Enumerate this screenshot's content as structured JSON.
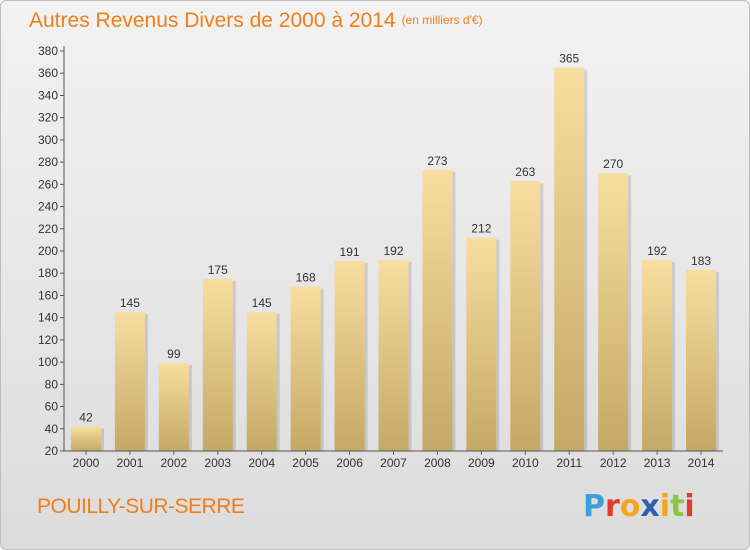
{
  "header": {
    "title": "Autres Revenus Divers de 2000 à 2014",
    "unit": "(en milliers d'€)"
  },
  "footer": {
    "commune": "POUILLY-SUR-SERRE",
    "logo_letters": [
      "P",
      "r",
      "o",
      "x",
      "i",
      "t",
      "i"
    ],
    "logo_colors": [
      "#3aa0d8",
      "#e23a2d",
      "#f5a51d",
      "#2c5fae",
      "#f5a51d",
      "#8cc63f",
      "#e23a2d"
    ]
  },
  "chart_data": {
    "type": "bar",
    "title": "Autres Revenus Divers de 2000 à 2014",
    "unit": "(en milliers d'€)",
    "categories": [
      "2000",
      "2001",
      "2002",
      "2003",
      "2004",
      "2005",
      "2006",
      "2007",
      "2008",
      "2009",
      "2010",
      "2011",
      "2012",
      "2013",
      "2014"
    ],
    "values": [
      42,
      145,
      99,
      175,
      145,
      168,
      191,
      192,
      273,
      212,
      263,
      365,
      270,
      192,
      183
    ],
    "ylim": [
      20,
      380
    ],
    "yticks": [
      20,
      40,
      60,
      80,
      100,
      120,
      140,
      160,
      180,
      200,
      220,
      240,
      260,
      280,
      300,
      320,
      340,
      360,
      380
    ],
    "grid": false,
    "legend": "none",
    "bar_color_top": "#f7dea0",
    "bar_color_bottom": "#c4a865"
  }
}
